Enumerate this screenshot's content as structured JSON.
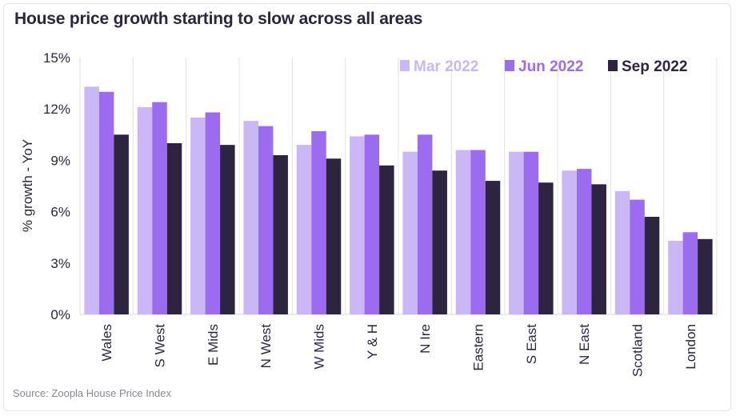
{
  "title": "House price growth starting to slow across all areas",
  "source": "Source: Zoopla House Price Index",
  "chart_data": {
    "type": "bar",
    "title": "House price growth starting to slow across all areas",
    "ylabel": "% growth - YoY",
    "xlabel": "",
    "ylim": [
      0,
      15
    ],
    "yticks": [
      0,
      3,
      6,
      9,
      12,
      15
    ],
    "ytick_labels": [
      "0%",
      "3%",
      "6%",
      "9%",
      "12%",
      "15%"
    ],
    "grid": "vertical separators between categories",
    "legend_position": "top-right",
    "categories": [
      "Wales",
      "S West",
      "E Mids",
      "N West",
      "W Mids",
      "Y & H",
      "N Ire",
      "Eastern",
      "S East",
      "N East",
      "Scotland",
      "London"
    ],
    "series": [
      {
        "name": "Mar 2022",
        "color": "#c9b8f5",
        "values": [
          13.3,
          12.1,
          11.5,
          11.3,
          9.9,
          10.4,
          9.5,
          9.6,
          9.5,
          8.4,
          7.2,
          4.3
        ]
      },
      {
        "name": "Jun 2022",
        "color": "#9b6cf0",
        "values": [
          13.0,
          12.4,
          11.8,
          11.0,
          10.7,
          10.5,
          10.5,
          9.6,
          9.5,
          8.5,
          6.7,
          4.8
        ]
      },
      {
        "name": "Sep 2022",
        "color": "#2d2440",
        "values": [
          10.5,
          10.0,
          9.9,
          9.3,
          9.1,
          8.7,
          8.4,
          7.8,
          7.7,
          7.6,
          5.7,
          4.4
        ]
      }
    ]
  }
}
